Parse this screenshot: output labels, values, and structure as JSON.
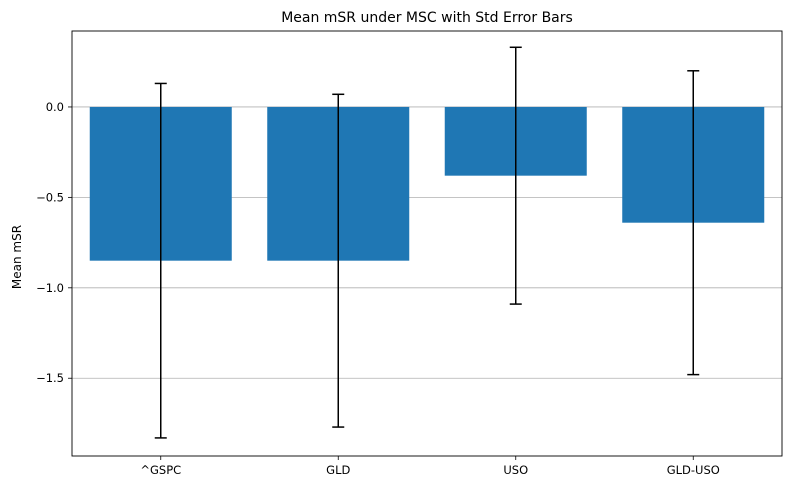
{
  "chart_data": {
    "type": "bar",
    "title": "Mean mSR under MSC with Std Error Bars",
    "xlabel": "",
    "ylabel": "Mean mSR",
    "categories": [
      "^GSPC",
      "GLD",
      "USO",
      "GLD-USO"
    ],
    "values": [
      -0.85,
      -0.85,
      -0.38,
      -0.64
    ],
    "error_lower": [
      -1.83,
      -1.77,
      -1.09,
      -1.48
    ],
    "error_upper": [
      0.13,
      0.07,
      0.33,
      0.2
    ],
    "ylim": [
      -1.93,
      0.42
    ],
    "yticks": [
      0.0,
      -0.5,
      -1.0,
      -1.5
    ],
    "ytick_labels": [
      "0.0",
      "−0.5",
      "−1.0",
      "−1.5"
    ],
    "grid": "y-axis horizontal",
    "bar_color": "#1f77b4",
    "errorbar_color": "#000000",
    "grid_color": "#b0b0b0"
  }
}
